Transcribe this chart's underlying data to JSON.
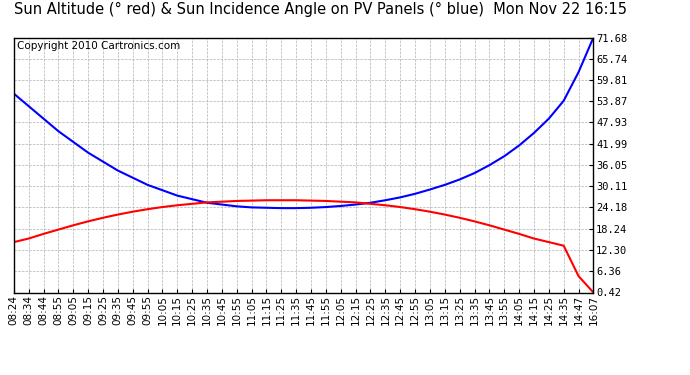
{
  "title": "Sun Altitude (° red) & Sun Incidence Angle on PV Panels (° blue)  Mon Nov 22 16:15",
  "copyright": "Copyright 2010 Cartronics.com",
  "x_labels": [
    "08:24",
    "08:34",
    "08:44",
    "08:55",
    "09:05",
    "09:15",
    "09:25",
    "09:35",
    "09:45",
    "09:55",
    "10:05",
    "10:15",
    "10:25",
    "10:35",
    "10:45",
    "10:55",
    "11:05",
    "11:15",
    "11:25",
    "11:35",
    "11:45",
    "11:55",
    "12:05",
    "12:15",
    "12:25",
    "12:35",
    "12:45",
    "12:55",
    "13:05",
    "13:15",
    "13:25",
    "13:35",
    "13:45",
    "13:55",
    "14:05",
    "14:15",
    "14:25",
    "14:35",
    "14:47",
    "16:07"
  ],
  "y_ticks": [
    0.42,
    6.36,
    12.3,
    18.24,
    24.18,
    30.11,
    36.05,
    41.99,
    47.93,
    53.87,
    59.81,
    65.74,
    71.68
  ],
  "ylim": [
    0.42,
    71.68
  ],
  "background_color": "#ffffff",
  "grid_color": "#b0b0b0",
  "plot_bg": "#ffffff",
  "blue_color": "#0000ff",
  "red_color": "#ff0000",
  "title_fontsize": 10.5,
  "copyright_fontsize": 7.5,
  "tick_fontsize": 7.5,
  "blue_data": [
    56.0,
    52.5,
    49.0,
    45.5,
    42.5,
    39.5,
    37.0,
    34.5,
    32.5,
    30.5,
    29.0,
    27.5,
    26.5,
    25.5,
    25.0,
    24.5,
    24.2,
    24.1,
    24.0,
    24.0,
    24.1,
    24.3,
    24.6,
    25.0,
    25.5,
    26.2,
    27.0,
    28.0,
    29.2,
    30.5,
    32.0,
    33.8,
    36.0,
    38.5,
    41.5,
    45.0,
    49.0,
    54.0,
    62.0,
    71.68
  ],
  "red_data": [
    14.5,
    15.5,
    16.8,
    18.0,
    19.2,
    20.3,
    21.3,
    22.2,
    23.0,
    23.7,
    24.3,
    24.8,
    25.2,
    25.6,
    25.8,
    26.0,
    26.1,
    26.2,
    26.2,
    26.2,
    26.1,
    26.0,
    25.8,
    25.6,
    25.2,
    24.8,
    24.3,
    23.7,
    23.0,
    22.2,
    21.3,
    20.3,
    19.2,
    18.0,
    16.8,
    15.5,
    14.5,
    13.5,
    5.0,
    0.42
  ]
}
